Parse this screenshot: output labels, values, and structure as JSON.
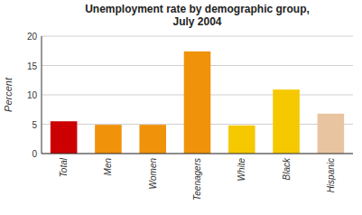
{
  "chart_data": {
    "type": "bar",
    "title": "Unemployment rate by demographic group,\nJuly 2004",
    "categories": [
      "Total",
      "Men",
      "Women",
      "Teenagers",
      "White",
      "Black",
      "Hispanic"
    ],
    "values": [
      5.5,
      4.9,
      4.9,
      17.4,
      4.8,
      10.9,
      6.8
    ],
    "colors": [
      "#cc0000",
      "#f0920a",
      "#f0920a",
      "#f0920a",
      "#f5c800",
      "#f5c800",
      "#e8c4a0"
    ],
    "ylabel": "Percent",
    "ylim": [
      0,
      20
    ],
    "yticks": [
      0,
      5,
      10,
      15,
      20
    ],
    "grid": true
  }
}
